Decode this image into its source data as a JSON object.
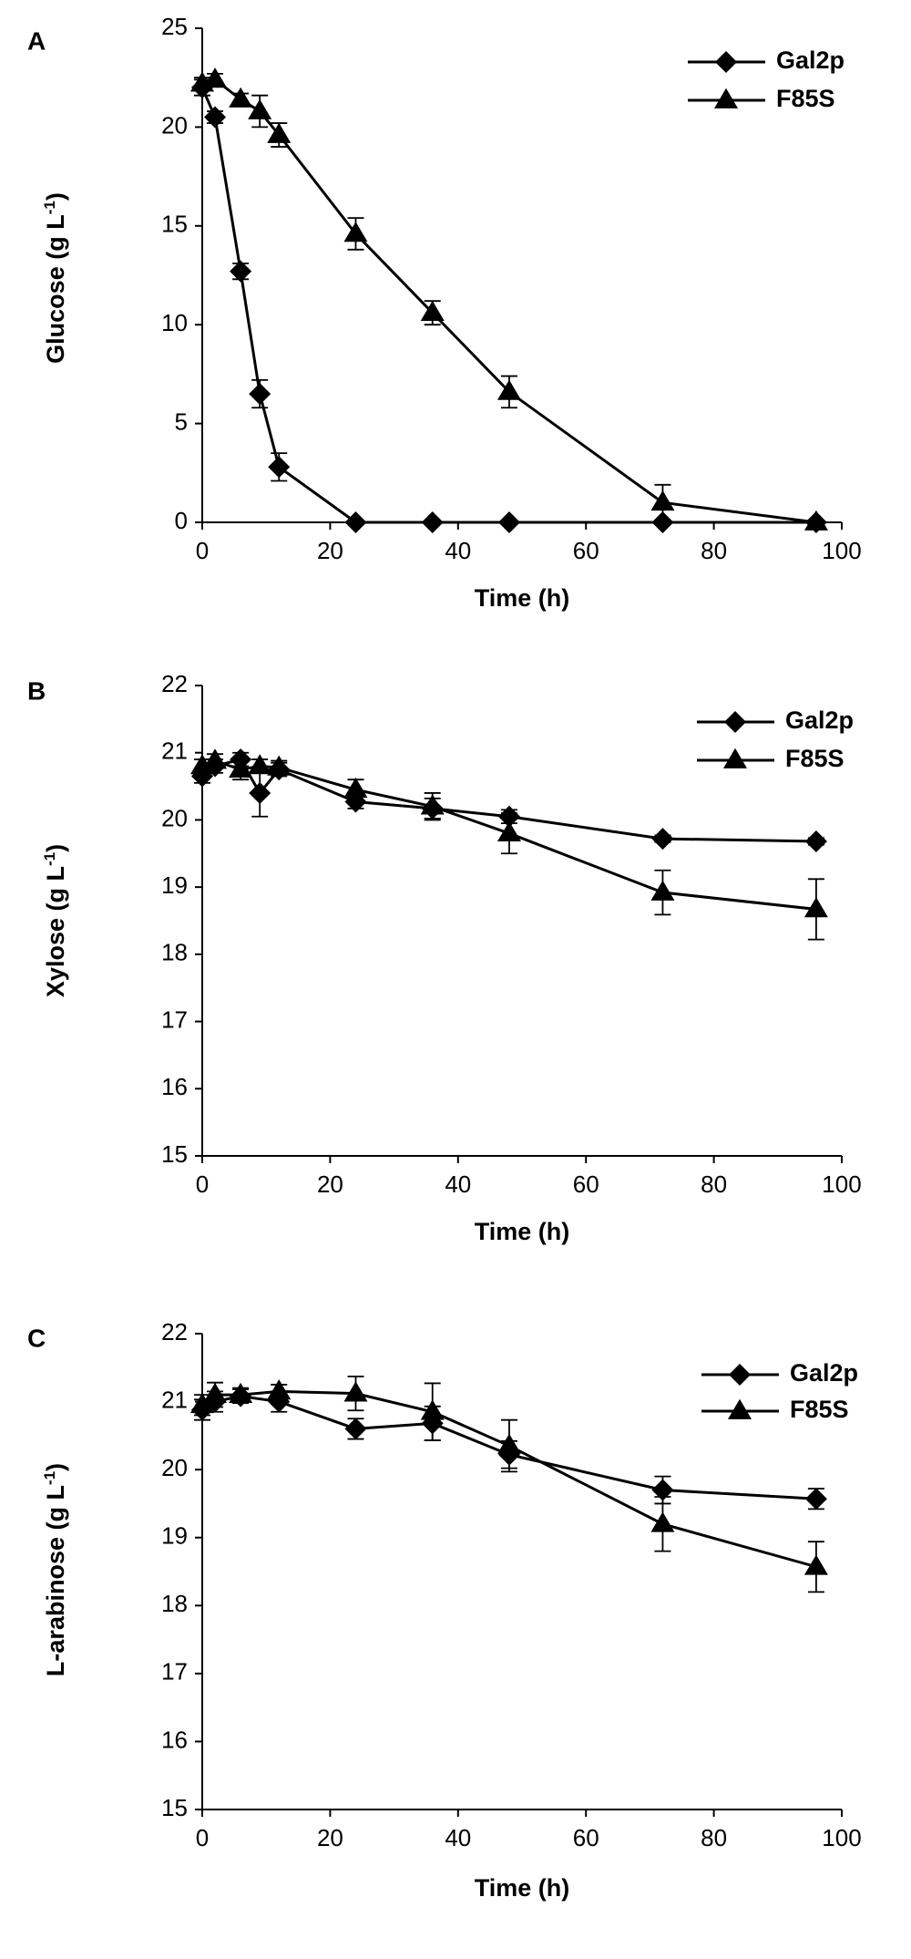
{
  "chart_data": [
    {
      "type": "line",
      "panel": "A",
      "xlabel": "Time (h)",
      "ylabel": "Glucose (g L",
      "ylabel_sup": "-1",
      "ylabel_end": ")",
      "xlim": [
        0,
        100
      ],
      "ylim": [
        0,
        25
      ],
      "xticks": [
        0,
        20,
        40,
        60,
        80,
        100
      ],
      "yticks": [
        0,
        5,
        10,
        15,
        20,
        25
      ],
      "legend_position": "top-right",
      "series": [
        {
          "name": "Gal2p",
          "marker": "diamond",
          "x": [
            0,
            2,
            6,
            9,
            12,
            24,
            36,
            48,
            72,
            96
          ],
          "y": [
            22.0,
            20.5,
            12.7,
            6.5,
            2.8,
            0.0,
            0.0,
            0.0,
            0.0,
            0.0
          ],
          "err": [
            0.4,
            0.3,
            0.4,
            0.7,
            0.7,
            0,
            0,
            0,
            0,
            0
          ]
        },
        {
          "name": "F85S",
          "marker": "triangle",
          "x": [
            0,
            2,
            6,
            9,
            12,
            24,
            36,
            48,
            72,
            96
          ],
          "y": [
            22.2,
            22.4,
            21.4,
            20.8,
            19.6,
            14.6,
            10.6,
            6.6,
            1.0,
            0.0
          ],
          "err": [
            0.3,
            0.3,
            0.3,
            0.8,
            0.6,
            0.8,
            0.6,
            0.8,
            0.9,
            0
          ]
        }
      ]
    },
    {
      "type": "line",
      "panel": "B",
      "xlabel": "Time (h)",
      "ylabel": "Xylose (g L",
      "ylabel_sup": "-1",
      "ylabel_end": ")",
      "xlim": [
        0,
        100
      ],
      "ylim": [
        15,
        22
      ],
      "xticks": [
        0,
        20,
        40,
        60,
        80,
        100
      ],
      "yticks": [
        15,
        16,
        17,
        18,
        19,
        20,
        21,
        22
      ],
      "legend_position": "top-right",
      "series": [
        {
          "name": "Gal2p",
          "marker": "diamond",
          "x": [
            0,
            2,
            6,
            9,
            12,
            24,
            36,
            48,
            72,
            96
          ],
          "y": [
            20.65,
            20.8,
            20.9,
            20.4,
            20.75,
            20.27,
            20.17,
            20.05,
            19.72,
            19.68
          ],
          "err": [
            0.1,
            0.1,
            0.1,
            0.35,
            0.1,
            0.1,
            0.15,
            0.1,
            0.05,
            0.05
          ]
        },
        {
          "name": "F85S",
          "marker": "triangle",
          "x": [
            0,
            2,
            6,
            9,
            12,
            24,
            36,
            48,
            72,
            96
          ],
          "y": [
            20.8,
            20.88,
            20.75,
            20.8,
            20.78,
            20.45,
            20.2,
            19.8,
            18.92,
            18.67
          ],
          "err": [
            0.1,
            0.1,
            0.15,
            0.1,
            0.1,
            0.15,
            0.2,
            0.3,
            0.33,
            0.45
          ]
        }
      ]
    },
    {
      "type": "line",
      "panel": "C",
      "xlabel": "Time (h)",
      "ylabel": "L-arabinose (g L",
      "ylabel_sup": "-1",
      "ylabel_end": ")",
      "xlim": [
        0,
        100
      ],
      "ylim": [
        15,
        22
      ],
      "xticks": [
        0,
        20,
        40,
        60,
        80,
        100
      ],
      "yticks": [
        15,
        16,
        17,
        18,
        19,
        20,
        21,
        22
      ],
      "legend_position": "top-right",
      "series": [
        {
          "name": "Gal2p",
          "marker": "diamond",
          "x": [
            0,
            2,
            6,
            12,
            24,
            36,
            48,
            72,
            96
          ],
          "y": [
            20.88,
            21.0,
            21.08,
            21.0,
            20.6,
            20.68,
            20.22,
            19.7,
            19.57
          ],
          "err": [
            0.15,
            0.15,
            0.1,
            0.15,
            0.15,
            0.25,
            0.2,
            0.2,
            0.15
          ]
        },
        {
          "name": "F85S",
          "marker": "triangle",
          "x": [
            0,
            2,
            6,
            12,
            24,
            36,
            48,
            72,
            96
          ],
          "y": [
            20.95,
            21.1,
            21.1,
            21.15,
            21.12,
            20.85,
            20.35,
            19.2,
            18.57
          ],
          "err": [
            0.15,
            0.18,
            0.1,
            0.1,
            0.25,
            0.42,
            0.38,
            0.4,
            0.37
          ]
        }
      ]
    }
  ]
}
